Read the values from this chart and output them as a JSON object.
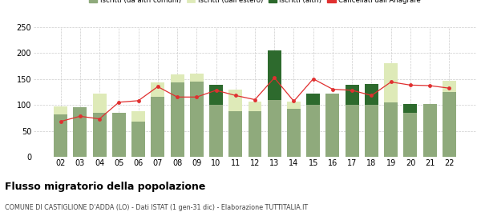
{
  "years": [
    "02",
    "03",
    "04",
    "05",
    "06",
    "07",
    "08",
    "09",
    "10",
    "11",
    "12",
    "13",
    "14",
    "15",
    "16",
    "17",
    "18",
    "19",
    "20",
    "21",
    "22"
  ],
  "iscritti_comuni": [
    82,
    95,
    85,
    85,
    68,
    115,
    143,
    145,
    100,
    88,
    88,
    110,
    93,
    100,
    122,
    100,
    100,
    105,
    85,
    102,
    125
  ],
  "iscritti_estero": [
    15,
    0,
    37,
    0,
    20,
    28,
    15,
    15,
    0,
    42,
    18,
    0,
    13,
    0,
    0,
    0,
    0,
    75,
    0,
    0,
    22
  ],
  "iscritti_altri": [
    0,
    0,
    0,
    0,
    0,
    0,
    0,
    0,
    38,
    0,
    0,
    95,
    0,
    22,
    0,
    38,
    40,
    0,
    17,
    0,
    0
  ],
  "cancellati": [
    68,
    78,
    73,
    105,
    108,
    135,
    115,
    115,
    128,
    118,
    110,
    152,
    107,
    150,
    130,
    128,
    118,
    144,
    138,
    137,
    132
  ],
  "colors": {
    "iscritti_comuni": "#8faa7c",
    "iscritti_estero": "#deeab8",
    "iscritti_altri": "#2d6a2d",
    "cancellati": "#e03030",
    "background": "#ffffff",
    "grid": "#cccccc"
  },
  "title": "Flusso migratorio della popolazione",
  "subtitle": "COMUNE DI CASTIGLIONE D'ADDA (LO) - Dati ISTAT (1 gen-31 dic) - Elaborazione TUTTITALIA.IT",
  "ylim": [
    0,
    250
  ],
  "yticks": [
    0,
    50,
    100,
    150,
    200,
    250
  ]
}
